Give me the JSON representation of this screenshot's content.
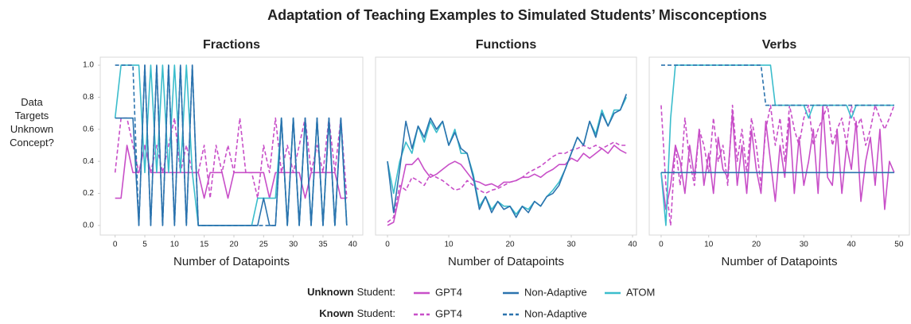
{
  "title": "Adaptation of Teaching Examples to Simulated Students’ Misconceptions",
  "ylabel": [
    "Data",
    "Targets",
    "Unknown",
    "Concept?"
  ],
  "legend": [
    {
      "group": "Unknown",
      "label": "Student:",
      "dashed": false,
      "entries": [
        {
          "name": "GPT4",
          "color": "#c84fc8"
        },
        {
          "name": "Non-Adaptive",
          "color": "#2b73ae"
        },
        {
          "name": "ATOM",
          "color": "#3bbdcc"
        }
      ]
    },
    {
      "group": "Known",
      "label": "Student:",
      "dashed": true,
      "entries": [
        {
          "name": "GPT4",
          "color": "#c84fc8"
        },
        {
          "name": "Non-Adaptive",
          "color": "#2b73ae"
        }
      ]
    }
  ],
  "chart_data": [
    {
      "type": "line",
      "title": "Fractions",
      "xlabel": "Number of Datapoints",
      "x": [
        0,
        1,
        2,
        3,
        4,
        5,
        6,
        7,
        8,
        9,
        10,
        11,
        12,
        13,
        14,
        15,
        16,
        17,
        18,
        19,
        20,
        21,
        22,
        23,
        24,
        25,
        26,
        27,
        28,
        29,
        30,
        31,
        32,
        33,
        34,
        35,
        36,
        37,
        38,
        39
      ],
      "xlim": [
        -2.5,
        41.7
      ],
      "xticks": [
        0,
        5,
        10,
        15,
        20,
        25,
        30,
        35,
        40
      ],
      "ylim": [
        -0.06,
        1.05
      ],
      "yticks": [
        {
          "value": 0,
          "label": "0.0"
        },
        0.2,
        0.4,
        0.6,
        0.8,
        {
          "value": 1,
          "label": "1.0"
        }
      ],
      "series": [
        {
          "name": "GPT4",
          "color": "#c84fc8",
          "dashed": false,
          "values": [
            0.17,
            0.17,
            0.5,
            0.33,
            0.33,
            0.5,
            0.33,
            0.33,
            0.33,
            0.33,
            0.33,
            0.33,
            0.33,
            0.33,
            0.33,
            0.17,
            0.33,
            0.33,
            0.33,
            0.17,
            0.33,
            0.33,
            0.33,
            0.33,
            0.33,
            0.33,
            0.17,
            0.33,
            0.33,
            0.33,
            0.33,
            0.33,
            0.17,
            0.33,
            0.33,
            0.33,
            0.33,
            0.33,
            0.17,
            0.17
          ]
        },
        {
          "name": "GPT4",
          "color": "#c84fc8",
          "dashed": true,
          "values": [
            0.33,
            0.67,
            0.67,
            0.5,
            0.33,
            0.5,
            0.33,
            0.5,
            0.33,
            0.5,
            0.67,
            0.33,
            0.5,
            0.33,
            0.33,
            0.5,
            0.17,
            0.5,
            0.33,
            0.5,
            0.33,
            0.67,
            0.33,
            0.33,
            0.17,
            0.5,
            0.33,
            0.67,
            0.33,
            0.5,
            0.33,
            0.5,
            0.67,
            0.33,
            0.5,
            0.33,
            0.67,
            0.33,
            0.67,
            0.17
          ]
        },
        {
          "name": "ATOM",
          "color": "#3bbdcc",
          "dashed": false,
          "values": [
            0.67,
            1,
            1,
            1,
            1,
            0.33,
            1,
            0.33,
            1,
            0.33,
            1,
            0.33,
            1,
            0.33,
            0,
            0,
            0,
            0,
            0,
            0,
            0,
            0,
            0,
            0,
            0.17,
            0.17,
            0.17,
            0.17,
            0.67,
            0,
            0.67,
            0,
            0.67,
            0,
            0.67,
            0,
            0.67,
            0,
            0.67,
            0
          ]
        },
        {
          "name": "Non-Adaptive",
          "color": "#2b73ae",
          "dashed": false,
          "values": [
            0.67,
            0.67,
            0.67,
            0.67,
            0,
            1,
            0,
            1,
            0,
            1,
            0,
            1,
            0,
            1,
            0,
            0,
            0,
            0,
            0,
            0,
            0,
            0,
            0,
            0,
            0,
            0.17,
            0,
            0,
            0.67,
            0,
            0.67,
            0,
            0.67,
            0,
            0.67,
            0,
            0.67,
            0,
            0.67,
            0
          ]
        },
        {
          "name": "Non-Adaptive",
          "color": "#2b73ae",
          "dashed": true,
          "values": [
            1,
            1,
            1,
            1,
            0,
            1,
            0,
            1,
            0,
            1,
            0,
            1,
            0,
            1,
            0,
            0,
            0,
            0,
            0,
            0,
            0,
            0,
            0,
            0,
            0,
            0,
            0,
            0,
            0.67,
            0,
            0.67,
            0,
            0.67,
            0,
            0.67,
            0,
            0.67,
            0,
            0.67,
            0
          ]
        }
      ]
    },
    {
      "type": "line",
      "title": "Functions",
      "xlabel": "Number of Datapoints",
      "x": [
        0,
        1,
        2,
        3,
        4,
        5,
        6,
        7,
        8,
        9,
        10,
        11,
        12,
        13,
        14,
        15,
        16,
        17,
        18,
        19,
        20,
        21,
        22,
        23,
        24,
        25,
        26,
        27,
        28,
        29,
        30,
        31,
        32,
        33,
        34,
        35,
        36,
        37,
        38,
        39
      ],
      "xlim": [
        -1.95,
        40.65
      ],
      "xticks": [
        0,
        10,
        20,
        30,
        40
      ],
      "ylim": [
        -0.06,
        1.05
      ],
      "series": [
        {
          "name": "GPT4",
          "color": "#c84fc8",
          "dashed": false,
          "values": [
            0.0,
            0.02,
            0.2,
            0.38,
            0.38,
            0.42,
            0.35,
            0.3,
            0.32,
            0.35,
            0.38,
            0.4,
            0.38,
            0.33,
            0.28,
            0.27,
            0.25,
            0.26,
            0.24,
            0.27,
            0.27,
            0.28,
            0.3,
            0.3,
            0.32,
            0.3,
            0.33,
            0.35,
            0.38,
            0.38,
            0.42,
            0.4,
            0.45,
            0.42,
            0.45,
            0.48,
            0.45,
            0.5,
            0.47,
            0.45
          ]
        },
        {
          "name": "GPT4",
          "color": "#c84fc8",
          "dashed": true,
          "values": [
            0.02,
            0.05,
            0.25,
            0.22,
            0.3,
            0.28,
            0.25,
            0.32,
            0.3,
            0.28,
            0.25,
            0.22,
            0.23,
            0.28,
            0.25,
            0.22,
            0.2,
            0.22,
            0.23,
            0.25,
            0.27,
            0.28,
            0.3,
            0.33,
            0.35,
            0.37,
            0.4,
            0.43,
            0.45,
            0.45,
            0.47,
            0.48,
            0.5,
            0.48,
            0.5,
            0.48,
            0.5,
            0.52,
            0.5,
            0.5
          ]
        },
        {
          "name": "ATOM",
          "color": "#3bbdcc",
          "dashed": false,
          "values": [
            0.4,
            0.2,
            0.4,
            0.52,
            0.45,
            0.62,
            0.52,
            0.65,
            0.58,
            0.65,
            0.5,
            0.6,
            0.45,
            0.45,
            0.32,
            0.12,
            0.18,
            0.1,
            0.15,
            0.12,
            0.12,
            0.07,
            0.12,
            0.1,
            0.15,
            0.12,
            0.18,
            0.22,
            0.27,
            0.35,
            0.45,
            0.55,
            0.5,
            0.65,
            0.57,
            0.72,
            0.62,
            0.72,
            0.72,
            0.8
          ]
        },
        {
          "name": "Non-Adaptive",
          "color": "#2b73ae",
          "dashed": false,
          "values": [
            0.4,
            0.08,
            0.35,
            0.65,
            0.48,
            0.62,
            0.55,
            0.67,
            0.6,
            0.65,
            0.5,
            0.58,
            0.48,
            0.45,
            0.3,
            0.1,
            0.18,
            0.08,
            0.15,
            0.1,
            0.12,
            0.05,
            0.12,
            0.08,
            0.15,
            0.12,
            0.18,
            0.2,
            0.25,
            0.35,
            0.45,
            0.55,
            0.5,
            0.65,
            0.55,
            0.7,
            0.62,
            0.7,
            0.72,
            0.82
          ]
        }
      ]
    },
    {
      "type": "line",
      "title": "Verbs",
      "xlabel": "Number of Datapoints",
      "x": [
        0,
        1,
        2,
        3,
        4,
        5,
        6,
        7,
        8,
        9,
        10,
        11,
        12,
        13,
        14,
        15,
        16,
        17,
        18,
        19,
        20,
        21,
        22,
        23,
        24,
        25,
        26,
        27,
        28,
        29,
        30,
        31,
        32,
        33,
        34,
        35,
        36,
        37,
        38,
        39,
        40,
        41,
        42,
        43,
        44,
        45,
        46,
        47,
        48,
        49
      ],
      "xlim": [
        -2.5,
        52.2
      ],
      "xticks": [
        0,
        10,
        20,
        30,
        40,
        50
      ],
      "ylim": [
        -0.06,
        1.05
      ],
      "series": [
        {
          "name": "GPT4",
          "color": "#c84fc8",
          "dashed": false,
          "values": [
            0.33,
            0.1,
            0.25,
            0.5,
            0.4,
            0.2,
            0.5,
            0.3,
            0.6,
            0.25,
            0.45,
            0.2,
            0.55,
            0.35,
            0.3,
            0.7,
            0.25,
            0.5,
            0.2,
            0.6,
            0.35,
            0.2,
            0.65,
            0.4,
            0.15,
            0.5,
            0.3,
            0.67,
            0.2,
            0.55,
            0.25,
            0.4,
            0.6,
            0.2,
            0.75,
            0.3,
            0.25,
            0.6,
            0.2,
            0.5,
            0.35,
            0.65,
            0.15,
            0.4,
            0.55,
            0.25,
            0.6,
            0.1,
            0.4,
            0.33
          ]
        },
        {
          "name": "GPT4",
          "color": "#c84fc8",
          "dashed": true,
          "values": [
            0.75,
            0.25,
            0,
            0.5,
            0.25,
            0.67,
            0.4,
            0.25,
            0.6,
            0.5,
            0.33,
            0.67,
            0.4,
            0.5,
            0.25,
            0.75,
            0.4,
            0.6,
            0.33,
            0.67,
            0.5,
            0.25,
            0.6,
            0.75,
            0.5,
            0.67,
            0.4,
            0.75,
            0.6,
            0.5,
            0.67,
            0.75,
            0.5,
            0.6,
            0.67,
            0.75,
            0.5,
            0.6,
            0.67,
            0.5,
            0.75,
            0.6,
            0.67,
            0.5,
            0.6,
            0.75,
            0.67,
            0.6,
            0.67,
            0.75
          ]
        },
        {
          "name": "ATOM",
          "color": "#3bbdcc",
          "dashed": false,
          "values": [
            0.33,
            0,
            0.67,
            1,
            1,
            1,
            1,
            1,
            1,
            1,
            1,
            1,
            1,
            1,
            1,
            1,
            1,
            1,
            1,
            1,
            1,
            1,
            1,
            1,
            0.75,
            0.75,
            0.75,
            0.75,
            0.75,
            0.75,
            0.75,
            0.67,
            0.75,
            0.75,
            0.75,
            0.75,
            0.75,
            0.75,
            0.75,
            0.75,
            0.67,
            0.75,
            0.75,
            0.75,
            0.75,
            0.75,
            0.75,
            0.75,
            0.75,
            0.75
          ]
        },
        {
          "name": "Non-Adaptive",
          "color": "#2b73ae",
          "dashed": false,
          "values": [
            0.33,
            0.33,
            0.33,
            0.33,
            0.33,
            0.33,
            0.33,
            0.33,
            0.33,
            0.33,
            0.33,
            0.33,
            0.33,
            0.33,
            0.33,
            0.33,
            0.33,
            0.33,
            0.33,
            0.33,
            0.33,
            0.33,
            0.33,
            0.33,
            0.33,
            0.33,
            0.33,
            0.33,
            0.33,
            0.33,
            0.33,
            0.33,
            0.33,
            0.33,
            0.33,
            0.33,
            0.33,
            0.33,
            0.33,
            0.33,
            0.33,
            0.33,
            0.33,
            0.33,
            0.33,
            0.33,
            0.33,
            0.33,
            0.33,
            0.33
          ]
        },
        {
          "name": "Non-Adaptive",
          "color": "#2b73ae",
          "dashed": true,
          "values": [
            1,
            1,
            1,
            1,
            1,
            1,
            1,
            1,
            1,
            1,
            1,
            1,
            1,
            1,
            1,
            1,
            1,
            1,
            1,
            1,
            1,
            1,
            0.75,
            0.75,
            0.75,
            0.75,
            0.75,
            0.75,
            0.75,
            0.75,
            0.75,
            0.75,
            0.75,
            0.75,
            0.75,
            0.75,
            0.75,
            0.75,
            0.75,
            0.75,
            0.75,
            0.75,
            0.75,
            0.75,
            0.75,
            0.75,
            0.75,
            0.75,
            0.75,
            0.75
          ]
        }
      ]
    }
  ]
}
